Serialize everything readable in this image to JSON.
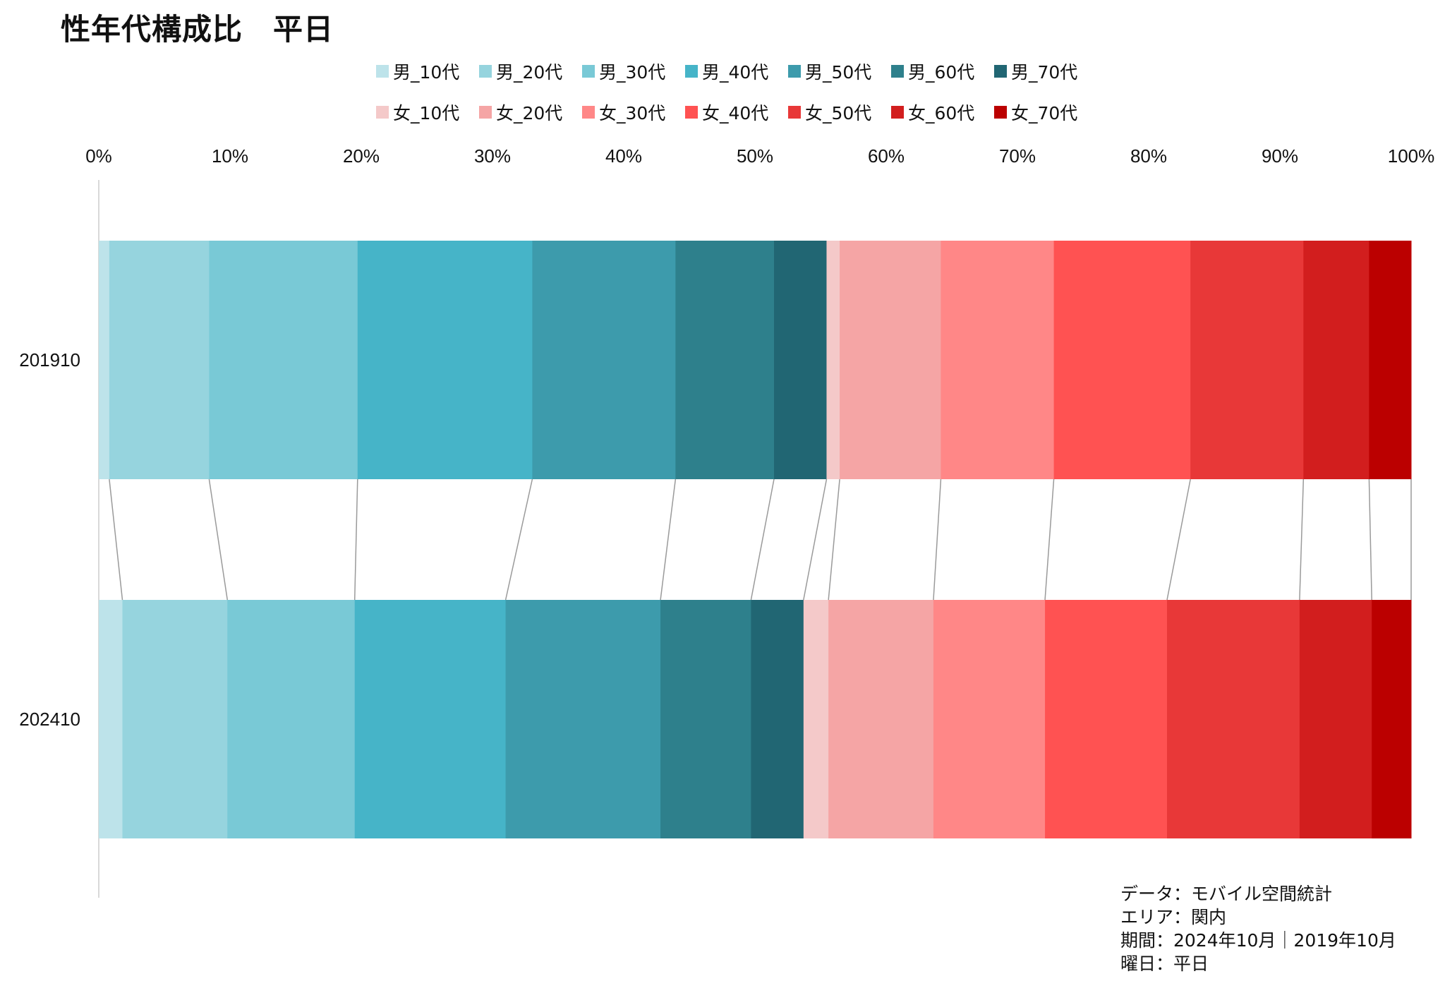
{
  "chart_data": {
    "type": "bar",
    "orientation": "horizontal",
    "stacked": "percent",
    "title": "性年代構成比　平日",
    "categories": [
      "201910",
      "202410"
    ],
    "xlim": [
      0,
      100
    ],
    "xticks": [
      "0%",
      "10%",
      "20%",
      "30%",
      "40%",
      "50%",
      "60%",
      "70%",
      "80%",
      "90%",
      "100%"
    ],
    "legend_position": "top",
    "series": [
      {
        "name": "男_10代",
        "color": "#bde3ea",
        "values": [
          0.8,
          1.8
        ]
      },
      {
        "name": "男_20代",
        "color": "#96d4de",
        "values": [
          7.6,
          8.0
        ]
      },
      {
        "name": "男_30代",
        "color": "#79c9d6",
        "values": [
          11.3,
          9.7
        ]
      },
      {
        "name": "男_40代",
        "color": "#46b4c8",
        "values": [
          13.3,
          11.5
        ]
      },
      {
        "name": "男_50代",
        "color": "#3d9bac",
        "values": [
          10.9,
          11.8
        ]
      },
      {
        "name": "男_60代",
        "color": "#2e808c",
        "values": [
          7.5,
          6.9
        ]
      },
      {
        "name": "男_70代",
        "color": "#216673",
        "values": [
          4.0,
          4.0
        ]
      },
      {
        "name": "女_10代",
        "color": "#f4c9c9",
        "values": [
          1.0,
          1.9
        ]
      },
      {
        "name": "女_20代",
        "color": "#f5a5a5",
        "values": [
          7.7,
          8.0
        ]
      },
      {
        "name": "女_30代",
        "color": "#ff8787",
        "values": [
          8.6,
          8.5
        ]
      },
      {
        "name": "女_40代",
        "color": "#ff5252",
        "values": [
          10.4,
          9.3
        ]
      },
      {
        "name": "女_50代",
        "color": "#e83838",
        "values": [
          8.6,
          10.1
        ]
      },
      {
        "name": "女_60代",
        "color": "#d21e1e",
        "values": [
          5.0,
          5.5
        ]
      },
      {
        "name": "女_70代",
        "color": "#bb0000",
        "values": [
          3.2,
          3.0
        ]
      }
    ]
  },
  "notes": [
    "データ：モバイル空間統計",
    "エリア：関内",
    "期間：2024年10月｜2019年10月",
    "曜日：平日"
  ]
}
